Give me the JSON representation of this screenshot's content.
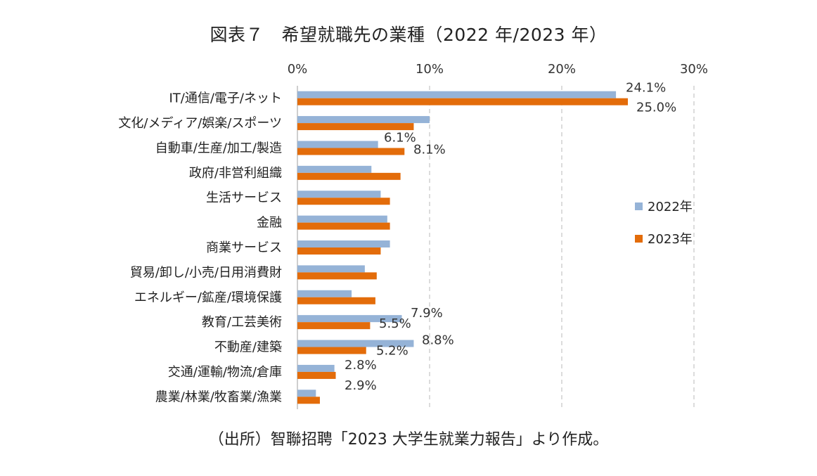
{
  "page": {
    "title": "図表７　希望就職先の業種（2022 年/2023 年）",
    "source": "（出所）智聯招聘「2023 大学生就業力報告」より作成。"
  },
  "colors": {
    "series_2022": "#95B3D7",
    "series_2023": "#E36C0A",
    "gridline": "#D0D0D0",
    "axis": "#BFBFBF"
  },
  "chart_data": {
    "type": "bar",
    "orientation": "horizontal",
    "xlim": [
      0,
      30
    ],
    "x_ticks": [
      0,
      10,
      20,
      30
    ],
    "x_tick_labels": [
      "0%",
      "10%",
      "20%",
      "30%"
    ],
    "grid": true,
    "legend_position": "right",
    "categories": [
      "IT/通信/電子/ネット",
      "文化/メディア/娯楽/スポーツ",
      "自動車/生産/加工/製造",
      "政府/非営利組織",
      "生活サービス",
      "金融",
      "商業サービス",
      "貿易/卸し/小売/日用消費財",
      "エネルギー/鉱産/環境保護",
      "教育/工芸美術",
      "不動産/建築",
      "交通/運輸/物流/倉庫",
      "農業/林業/牧畜業/漁業"
    ],
    "series": [
      {
        "name": "2022年",
        "values": [
          24.1,
          10.0,
          6.1,
          5.6,
          6.3,
          6.8,
          7.0,
          5.1,
          4.1,
          7.9,
          8.8,
          2.8,
          1.4
        ]
      },
      {
        "name": "2023年",
        "values": [
          25.0,
          8.8,
          8.1,
          7.8,
          7.0,
          7.0,
          6.3,
          6.0,
          5.9,
          5.5,
          5.2,
          2.9,
          1.7
        ]
      }
    ],
    "annotations": [
      {
        "text": "24.1%",
        "category_index": 0
      },
      {
        "text": "25.0%",
        "category_index": 0
      },
      {
        "text": "6.1%",
        "category_index": 2
      },
      {
        "text": "8.1%",
        "category_index": 2
      },
      {
        "text": "7.9%",
        "category_index": 9
      },
      {
        "text": "5.5%",
        "category_index": 9
      },
      {
        "text": "8.8%",
        "category_index": 10
      },
      {
        "text": "5.2%",
        "category_index": 10
      },
      {
        "text": "2.8%",
        "category_index": 11
      },
      {
        "text": "2.9%",
        "category_index": 11
      }
    ]
  }
}
